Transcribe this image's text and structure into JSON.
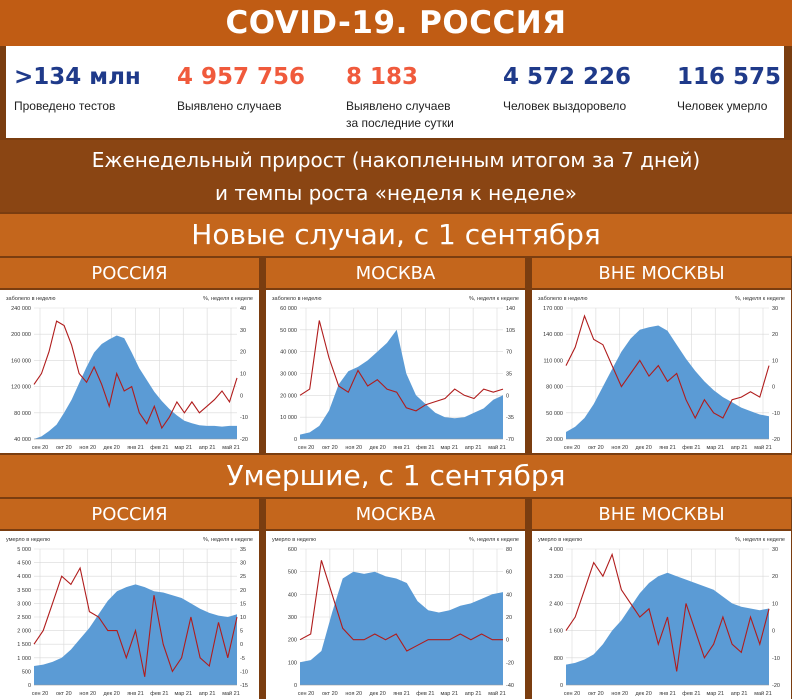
{
  "title": "COVID-19. РОССИЯ",
  "stats": [
    {
      "value": ">134 млн",
      "label1": "Проведено тестов",
      "label2": "",
      "color": "#1f3a8a"
    },
    {
      "value": "4 957 756",
      "label1": "Выявлено случаев",
      "label2": "",
      "color": "#f05a3c"
    },
    {
      "value": "8 183",
      "label1": "Выявлено случаев",
      "label2": "за последние сутки",
      "color": "#f05a3c"
    },
    {
      "value": "4 572 226",
      "label1": "Человек выздоровело",
      "label2": "",
      "color": "#1f3a8a"
    },
    {
      "value": "116 575",
      "label1": "Человек умерло",
      "label2": "",
      "color": "#1f3a8a"
    }
  ],
  "subtitle": {
    "line1": "Еженедельный прирост (накопленным итогом за 7 дней)",
    "line2": "и темпы роста «неделя к неделе»"
  },
  "section_cases": "Новые случаи, с 1 сентября",
  "section_deaths": "Умершие, с 1 сентября",
  "colors": {
    "area": "#5b9bd5",
    "line": "#b01c1c",
    "grid": "#d9d9d9"
  },
  "chart_data": [
    {
      "type": "area",
      "panel": "РОССИЯ",
      "group": "cases",
      "left_label": "заболело в неделю",
      "right_label": "%, неделя к неделе",
      "left_ticks": [
        "240 000",
        "200 000",
        "160 000",
        "120 000",
        "80 000",
        "40 000"
      ],
      "left_range": [
        40000,
        240000
      ],
      "right_ticks": [
        "40",
        "30",
        "20",
        "10",
        "0",
        "-10",
        "-20"
      ],
      "right_range": [
        -20,
        40
      ],
      "x_ticks": [
        "сен 20",
        "окт 20",
        "ноя 20",
        "дек 20",
        "янв 21",
        "фев 21",
        "мар 21",
        "апр 21",
        "май 21"
      ],
      "series": [
        {
          "name": "заболело в неделю",
          "axis": "left",
          "values": [
            40000,
            44000,
            52000,
            62000,
            80000,
            100000,
            125000,
            150000,
            172000,
            185000,
            192000,
            198000,
            194000,
            172000,
            148000,
            130000,
            112000,
            98000,
            86000,
            76000,
            68000,
            64000,
            61000,
            60000,
            60000,
            59000,
            60000,
            60000
          ]
        },
        {
          "name": "%, неделя к неделе",
          "axis": "right",
          "values": [
            5,
            10,
            20,
            34,
            32,
            23,
            10,
            6,
            13,
            5,
            -5,
            10,
            2,
            4,
            -8,
            -13,
            -5,
            -15,
            -10,
            -3,
            -8,
            -3,
            -8,
            -5,
            -2,
            2,
            -3,
            8
          ]
        }
      ]
    },
    {
      "type": "area",
      "panel": "МОСКВА",
      "group": "cases",
      "left_label": "заболело в неделю",
      "right_label": "%, неделя к неделе",
      "left_ticks": [
        "60 000",
        "50 000",
        "40 000",
        "30 000",
        "20 000",
        "10 000",
        "0"
      ],
      "left_range": [
        0,
        60000
      ],
      "right_ticks": [
        "140",
        "105",
        "70",
        "35",
        "0",
        "-35",
        "-70"
      ],
      "right_range": [
        -70,
        140
      ],
      "x_ticks": [
        "сен 20",
        "окт 20",
        "ноя 20",
        "дек 20",
        "янв 21",
        "фев 21",
        "мар 21",
        "апр 21",
        "май 21"
      ],
      "series": [
        {
          "name": "заболело в неделю",
          "axis": "left",
          "values": [
            2000,
            3000,
            6000,
            13000,
            25000,
            31000,
            33000,
            36000,
            40000,
            44000,
            50000,
            30000,
            20000,
            16000,
            12000,
            10000,
            9500,
            10000,
            12000,
            14000,
            18000,
            20000
          ]
        },
        {
          "name": "%, неделя к неделе",
          "axis": "right",
          "values": [
            0,
            10,
            120,
            60,
            15,
            5,
            40,
            15,
            25,
            10,
            5,
            -20,
            -25,
            -15,
            -10,
            -5,
            10,
            0,
            -5,
            10,
            5,
            10
          ]
        }
      ]
    },
    {
      "type": "area",
      "panel": "ВНЕ МОСКВЫ",
      "group": "cases",
      "left_label": "заболело в неделю",
      "right_label": "%, неделя к неделе",
      "left_ticks": [
        "170 000",
        "140 000",
        "110 000",
        "80 000",
        "50 000",
        "20 000"
      ],
      "left_range": [
        20000,
        170000
      ],
      "right_ticks": [
        "30",
        "20",
        "10",
        "0",
        "-10",
        "-20"
      ],
      "right_range": [
        -20,
        30
      ],
      "x_ticks": [
        "сен 20",
        "окт 20",
        "ноя 20",
        "дек 20",
        "янв 21",
        "фев 21",
        "мар 21",
        "апр 21",
        "май 21"
      ],
      "series": [
        {
          "name": "заболело в неделю",
          "axis": "left",
          "values": [
            28000,
            34000,
            44000,
            60000,
            80000,
            100000,
            120000,
            135000,
            145000,
            148000,
            150000,
            144000,
            128000,
            112000,
            98000,
            86000,
            76000,
            68000,
            62000,
            56000,
            52000,
            48000,
            46000
          ]
        },
        {
          "name": "%, неделя к неделе",
          "axis": "right",
          "values": [
            8,
            15,
            27,
            18,
            16,
            8,
            0,
            5,
            10,
            4,
            8,
            2,
            5,
            -5,
            -12,
            -5,
            -10,
            -12,
            -5,
            -4,
            -2,
            -4,
            8
          ]
        }
      ]
    },
    {
      "type": "area",
      "panel": "РОССИЯ",
      "group": "deaths",
      "left_label": "умерло в неделю",
      "right_label": "%, неделя к неделе",
      "left_ticks": [
        "5 000",
        "4 500",
        "4 000",
        "3 500",
        "3 000",
        "2 500",
        "2 000",
        "1 500",
        "1 000",
        "500",
        "0"
      ],
      "left_range": [
        0,
        5000
      ],
      "right_ticks": [
        "35",
        "30",
        "25",
        "20",
        "15",
        "10",
        "5",
        "0",
        "-5",
        "-10",
        "-15"
      ],
      "right_range": [
        -15,
        35
      ],
      "x_ticks": [
        "сен 20",
        "окт 20",
        "ноя 20",
        "дек 20",
        "янв 21",
        "фев 21",
        "мар 21",
        "апр 21",
        "май 21"
      ],
      "series": [
        {
          "name": "умерло в неделю",
          "axis": "left",
          "values": [
            700,
            750,
            850,
            1000,
            1300,
            1700,
            2100,
            2600,
            3100,
            3450,
            3600,
            3700,
            3600,
            3450,
            3400,
            3300,
            3200,
            3000,
            2800,
            2650,
            2550,
            2500,
            2600
          ]
        },
        {
          "name": "%, неделя к неделе",
          "axis": "right",
          "values": [
            0,
            5,
            15,
            25,
            22,
            28,
            12,
            10,
            5,
            5,
            -5,
            5,
            -12,
            18,
            0,
            -10,
            -5,
            10,
            -5,
            -8,
            8,
            -5,
            10
          ]
        }
      ]
    },
    {
      "type": "area",
      "panel": "МОСКВА",
      "group": "deaths",
      "left_label": "умерло в неделю",
      "right_label": "%, неделя к неделе",
      "left_ticks": [
        "600",
        "500",
        "400",
        "300",
        "200",
        "100",
        "0"
      ],
      "left_range": [
        0,
        600
      ],
      "right_ticks": [
        "80",
        "60",
        "40",
        "20",
        "0",
        "-20",
        "-40"
      ],
      "right_range": [
        -40,
        80
      ],
      "x_ticks": [
        "сен 20",
        "окт 20",
        "ноя 20",
        "дек 20",
        "янв 21",
        "фев 21",
        "мар 21",
        "апр 21",
        "май 21"
      ],
      "series": [
        {
          "name": "умерло в неделю",
          "axis": "left",
          "values": [
            100,
            110,
            150,
            320,
            470,
            500,
            490,
            500,
            480,
            470,
            450,
            370,
            330,
            320,
            330,
            350,
            360,
            380,
            400,
            410
          ]
        },
        {
          "name": "%, неделя к неделе",
          "axis": "right",
          "values": [
            0,
            5,
            70,
            40,
            10,
            0,
            0,
            5,
            0,
            5,
            -10,
            -5,
            0,
            0,
            0,
            5,
            0,
            5,
            0,
            0
          ]
        }
      ]
    },
    {
      "type": "area",
      "panel": "ВНЕ МОСКВЫ",
      "group": "deaths",
      "left_label": "умерло в неделю",
      "right_label": "%, неделя к неделе",
      "left_ticks": [
        "4 000",
        "3 200",
        "2 400",
        "1 600",
        "800",
        "0"
      ],
      "left_range": [
        0,
        4000
      ],
      "right_ticks": [
        "30",
        "20",
        "10",
        "0",
        "-10",
        "-20"
      ],
      "right_range": [
        -20,
        30
      ],
      "x_ticks": [
        "сен 20",
        "окт 20",
        "ноя 20",
        "дек 20",
        "янв 21",
        "фев 21",
        "мар 21",
        "апр 21",
        "май 21"
      ],
      "series": [
        {
          "name": "умерло в неделю",
          "axis": "left",
          "values": [
            600,
            650,
            750,
            900,
            1200,
            1600,
            1900,
            2300,
            2700,
            3000,
            3200,
            3300,
            3200,
            3100,
            3000,
            2900,
            2800,
            2600,
            2400,
            2300,
            2250,
            2200,
            2250
          ]
        },
        {
          "name": "%, неделя к неделе",
          "axis": "right",
          "values": [
            0,
            5,
            15,
            25,
            20,
            28,
            15,
            10,
            5,
            8,
            -5,
            5,
            -15,
            10,
            0,
            -10,
            -5,
            5,
            -5,
            -8,
            5,
            -5,
            8
          ]
        }
      ]
    }
  ]
}
